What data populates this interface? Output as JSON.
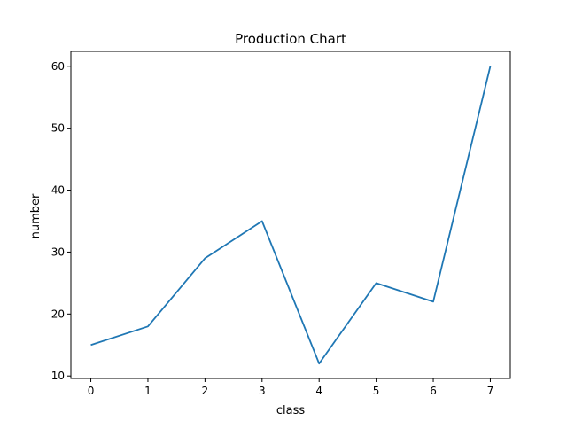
{
  "chart_data": {
    "type": "line",
    "title": "Production Chart",
    "xlabel": "class",
    "ylabel": "number",
    "x": [
      0,
      1,
      2,
      3,
      4,
      5,
      6,
      7
    ],
    "series": [
      {
        "values": [
          15,
          18,
          29,
          35,
          12,
          25,
          22,
          60
        ]
      }
    ],
    "xlim": [
      -0.35,
      7.35
    ],
    "ylim": [
      9.6,
      62.4
    ],
    "xticks": [
      0,
      1,
      2,
      3,
      4,
      5,
      6,
      7
    ],
    "yticks": [
      10,
      20,
      30,
      40,
      50,
      60
    ],
    "grid": false,
    "legend": "none",
    "colors": {
      "line": "#1f77b4",
      "axes": "#000000"
    }
  }
}
